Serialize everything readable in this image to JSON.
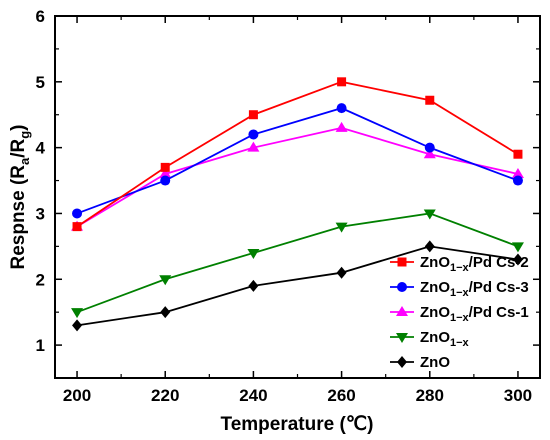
{
  "chart_data": {
    "type": "line",
    "title": "",
    "xlabel": "Temperature (℃)",
    "ylabel_main": "Respnse (R",
    "ylabel_sub_a": "a",
    "ylabel_sep": "/R",
    "ylabel_sub_g": "g",
    "ylabel_close": ")",
    "xlim": [
      195,
      305
    ],
    "ylim": [
      0.5,
      6
    ],
    "x_ticks": [
      200,
      220,
      240,
      260,
      280,
      300
    ],
    "y_ticks": [
      1,
      2,
      3,
      4,
      5,
      6
    ],
    "x": [
      200,
      220,
      240,
      260,
      280,
      300
    ],
    "grid": false,
    "legend_position": "lower-right",
    "series": [
      {
        "name": "ZnO1-x/Pd Cs-2",
        "name_main": "ZnO",
        "name_sub": "1−x",
        "name_tail": "/Pd Cs-2",
        "color": "#ff0000",
        "marker": "square",
        "values": [
          2.8,
          3.7,
          4.5,
          5.0,
          4.72,
          3.9
        ]
      },
      {
        "name": "ZnO1-x/Pd Cs-3",
        "name_main": "ZnO",
        "name_sub": "1−x",
        "name_tail": "/Pd Cs-3",
        "color": "#0000ff",
        "marker": "circle",
        "values": [
          3.0,
          3.5,
          4.2,
          4.6,
          4.0,
          3.5
        ]
      },
      {
        "name": "ZnO1-x/Pd Cs-1",
        "name_main": "ZnO",
        "name_sub": "1−x",
        "name_tail": "/Pd Cs-1",
        "color": "#ff00ff",
        "marker": "triangle-up",
        "values": [
          2.8,
          3.6,
          4.0,
          4.3,
          3.9,
          3.6
        ]
      },
      {
        "name": "ZnO1-x",
        "name_main": "ZnO",
        "name_sub": "1−x",
        "name_tail": "",
        "color": "#008000",
        "marker": "triangle-down",
        "values": [
          1.5,
          2.0,
          2.4,
          2.8,
          3.0,
          2.5
        ]
      },
      {
        "name": "ZnO",
        "name_main": "ZnO",
        "name_sub": "",
        "name_tail": "",
        "color": "#000000",
        "marker": "diamond",
        "values": [
          1.3,
          1.5,
          1.9,
          2.1,
          2.5,
          2.3
        ]
      }
    ]
  }
}
